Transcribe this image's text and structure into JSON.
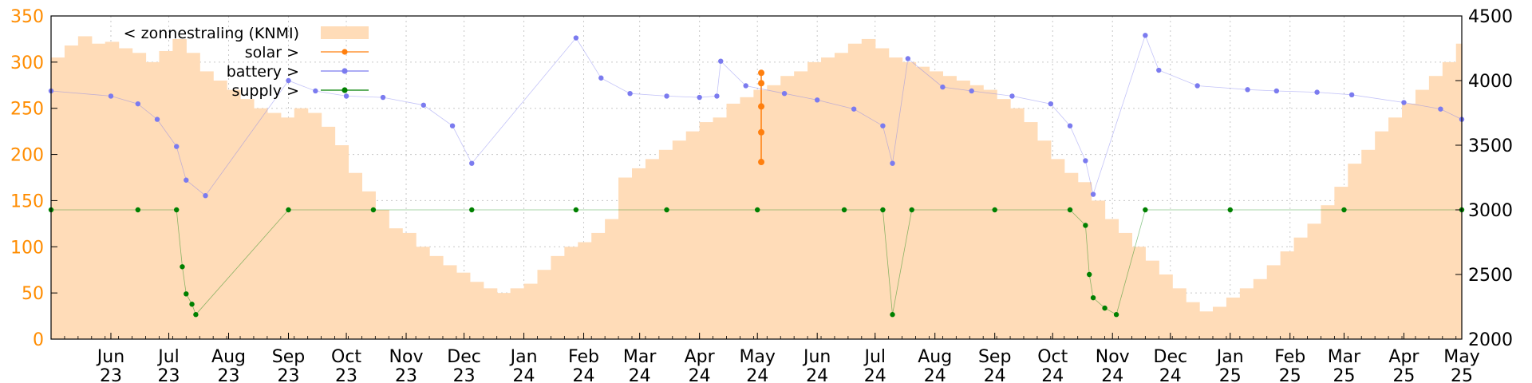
{
  "chart_data": {
    "type": "line",
    "title": "",
    "grid": true,
    "legend": {
      "placement": "top-left",
      "entries": [
        "< zonnestraling (KNMI)",
        "solar >",
        "battery >",
        "supply >"
      ]
    },
    "x_axis": {
      "ticks": [
        {
          "month": "Jun",
          "year": "23"
        },
        {
          "month": "Jul",
          "year": "23"
        },
        {
          "month": "Aug",
          "year": "23"
        },
        {
          "month": "Sep",
          "year": "23"
        },
        {
          "month": "Oct",
          "year": "23"
        },
        {
          "month": "Nov",
          "year": "23"
        },
        {
          "month": "Dec",
          "year": "23"
        },
        {
          "month": "Jan",
          "year": "24"
        },
        {
          "month": "Feb",
          "year": "24"
        },
        {
          "month": "Mar",
          "year": "24"
        },
        {
          "month": "Apr",
          "year": "24"
        },
        {
          "month": "May",
          "year": "24"
        },
        {
          "month": "Jun",
          "year": "24"
        },
        {
          "month": "Jul",
          "year": "24"
        },
        {
          "month": "Aug",
          "year": "24"
        },
        {
          "month": "Sep",
          "year": "24"
        },
        {
          "month": "Oct",
          "year": "24"
        },
        {
          "month": "Nov",
          "year": "24"
        },
        {
          "month": "Dec",
          "year": "24"
        },
        {
          "month": "Jan",
          "year": "25"
        },
        {
          "month": "Feb",
          "year": "25"
        },
        {
          "month": "Mar",
          "year": "25"
        },
        {
          "month": "Apr",
          "year": "25"
        },
        {
          "month": "May",
          "year": "25"
        }
      ],
      "range": [
        "2023-05-01",
        "2025-05-01"
      ]
    },
    "y_left": {
      "ticks": [
        0,
        50,
        100,
        150,
        200,
        250,
        300,
        350
      ],
      "range": [
        0,
        350
      ],
      "color": "#ff8c00"
    },
    "y_right": {
      "ticks": [
        2000,
        2500,
        3000,
        3500,
        4000,
        4500
      ],
      "range": [
        2000,
        4500
      ]
    },
    "series": [
      {
        "name": "< zonnestraling (KNMI)",
        "axis": "left",
        "style": "bars",
        "color": "#ffdcb8",
        "points": [
          [
            "2023-05-01",
            305
          ],
          [
            "2023-05-08",
            318
          ],
          [
            "2023-05-15",
            328
          ],
          [
            "2023-05-22",
            320
          ],
          [
            "2023-05-29",
            322
          ],
          [
            "2023-06-05",
            315
          ],
          [
            "2023-06-12",
            310
          ],
          [
            "2023-06-19",
            300
          ],
          [
            "2023-06-26",
            312
          ],
          [
            "2023-07-03",
            325
          ],
          [
            "2023-07-10",
            310
          ],
          [
            "2023-07-17",
            290
          ],
          [
            "2023-07-24",
            280
          ],
          [
            "2023-07-31",
            270
          ],
          [
            "2023-08-07",
            260
          ],
          [
            "2023-08-14",
            250
          ],
          [
            "2023-08-21",
            245
          ],
          [
            "2023-08-28",
            240
          ],
          [
            "2023-09-04",
            250
          ],
          [
            "2023-09-11",
            245
          ],
          [
            "2023-09-18",
            230
          ],
          [
            "2023-09-25",
            210
          ],
          [
            "2023-10-02",
            180
          ],
          [
            "2023-10-09",
            160
          ],
          [
            "2023-10-16",
            140
          ],
          [
            "2023-10-23",
            120
          ],
          [
            "2023-10-30",
            115
          ],
          [
            "2023-11-06",
            100
          ],
          [
            "2023-11-13",
            90
          ],
          [
            "2023-11-20",
            80
          ],
          [
            "2023-11-27",
            72
          ],
          [
            "2023-12-04",
            62
          ],
          [
            "2023-12-11",
            55
          ],
          [
            "2023-12-18",
            50
          ],
          [
            "2023-12-25",
            55
          ],
          [
            "2024-01-01",
            60
          ],
          [
            "2024-01-08",
            75
          ],
          [
            "2024-01-15",
            90
          ],
          [
            "2024-01-22",
            100
          ],
          [
            "2024-01-29",
            105
          ],
          [
            "2024-02-05",
            115
          ],
          [
            "2024-02-12",
            130
          ],
          [
            "2024-02-19",
            175
          ],
          [
            "2024-02-26",
            185
          ],
          [
            "2024-03-04",
            195
          ],
          [
            "2024-03-11",
            205
          ],
          [
            "2024-03-18",
            215
          ],
          [
            "2024-03-25",
            225
          ],
          [
            "2024-04-01",
            235
          ],
          [
            "2024-04-08",
            240
          ],
          [
            "2024-04-15",
            255
          ],
          [
            "2024-04-22",
            262
          ],
          [
            "2024-04-29",
            270
          ],
          [
            "2024-05-06",
            275
          ],
          [
            "2024-05-13",
            285
          ],
          [
            "2024-05-20",
            290
          ],
          [
            "2024-05-27",
            300
          ],
          [
            "2024-06-03",
            305
          ],
          [
            "2024-06-10",
            310
          ],
          [
            "2024-06-17",
            320
          ],
          [
            "2024-06-24",
            325
          ],
          [
            "2024-07-01",
            315
          ],
          [
            "2024-07-08",
            305
          ],
          [
            "2024-07-15",
            300
          ],
          [
            "2024-07-22",
            295
          ],
          [
            "2024-07-29",
            290
          ],
          [
            "2024-08-05",
            285
          ],
          [
            "2024-08-12",
            280
          ],
          [
            "2024-08-19",
            275
          ],
          [
            "2024-08-26",
            270
          ],
          [
            "2024-09-02",
            260
          ],
          [
            "2024-09-09",
            250
          ],
          [
            "2024-09-16",
            235
          ],
          [
            "2024-09-23",
            215
          ],
          [
            "2024-09-30",
            195
          ],
          [
            "2024-10-07",
            180
          ],
          [
            "2024-10-14",
            170
          ],
          [
            "2024-10-21",
            150
          ],
          [
            "2024-10-28",
            130
          ],
          [
            "2024-11-04",
            115
          ],
          [
            "2024-11-11",
            100
          ],
          [
            "2024-11-18",
            85
          ],
          [
            "2024-11-25",
            70
          ],
          [
            "2024-12-02",
            55
          ],
          [
            "2024-12-09",
            40
          ],
          [
            "2024-12-16",
            30
          ],
          [
            "2024-12-23",
            35
          ],
          [
            "2024-12-30",
            45
          ],
          [
            "2025-01-06",
            55
          ],
          [
            "2025-01-13",
            65
          ],
          [
            "2025-01-20",
            80
          ],
          [
            "2025-01-27",
            95
          ],
          [
            "2025-02-03",
            110
          ],
          [
            "2025-02-10",
            125
          ],
          [
            "2025-02-17",
            145
          ],
          [
            "2025-02-24",
            165
          ],
          [
            "2025-03-03",
            190
          ],
          [
            "2025-03-10",
            205
          ],
          [
            "2025-03-17",
            225
          ],
          [
            "2025-03-24",
            240
          ],
          [
            "2025-03-31",
            255
          ],
          [
            "2025-04-07",
            270
          ],
          [
            "2025-04-14",
            285
          ],
          [
            "2025-04-21",
            300
          ],
          [
            "2025-04-28",
            320
          ]
        ]
      },
      {
        "name": "solar >",
        "axis": "right",
        "style": "linespoints",
        "color": "#ff7f0e",
        "points": [
          [
            "2024-05-03",
            3370
          ],
          [
            "2024-05-03",
            3600
          ],
          [
            "2024-05-03",
            3800
          ],
          [
            "2024-05-03",
            3980
          ],
          [
            "2024-05-03",
            4060
          ]
        ]
      },
      {
        "name": "battery >",
        "axis": "right",
        "style": "points",
        "color": "#7b7bef",
        "points": [
          [
            "2023-05-01",
            3920
          ],
          [
            "2023-06-01",
            3880
          ],
          [
            "2023-06-15",
            3820
          ],
          [
            "2023-06-25",
            3700
          ],
          [
            "2023-07-05",
            3490
          ],
          [
            "2023-07-10",
            3230
          ],
          [
            "2023-07-20",
            3110
          ],
          [
            "2023-09-01",
            4000
          ],
          [
            "2023-09-15",
            3920
          ],
          [
            "2023-10-01",
            3880
          ],
          [
            "2023-10-20",
            3870
          ],
          [
            "2023-11-10",
            3810
          ],
          [
            "2023-11-25",
            3650
          ],
          [
            "2023-12-05",
            3360
          ],
          [
            "2024-01-28",
            4330
          ],
          [
            "2024-02-10",
            4020
          ],
          [
            "2024-02-25",
            3900
          ],
          [
            "2024-03-15",
            3880
          ],
          [
            "2024-04-01",
            3870
          ],
          [
            "2024-04-10",
            3880
          ],
          [
            "2024-04-12",
            4150
          ],
          [
            "2024-04-25",
            3960
          ],
          [
            "2024-05-15",
            3900
          ],
          [
            "2024-06-01",
            3850
          ],
          [
            "2024-06-20",
            3780
          ],
          [
            "2024-07-05",
            3650
          ],
          [
            "2024-07-10",
            3360
          ],
          [
            "2024-07-18",
            4170
          ],
          [
            "2024-08-05",
            3950
          ],
          [
            "2024-08-20",
            3920
          ],
          [
            "2024-09-10",
            3880
          ],
          [
            "2024-09-30",
            3820
          ],
          [
            "2024-10-10",
            3650
          ],
          [
            "2024-10-18",
            3380
          ],
          [
            "2024-10-22",
            3120
          ],
          [
            "2024-11-18",
            4350
          ],
          [
            "2024-11-25",
            4080
          ],
          [
            "2024-12-15",
            3960
          ],
          [
            "2025-01-10",
            3930
          ],
          [
            "2025-01-25",
            3920
          ],
          [
            "2025-02-15",
            3910
          ],
          [
            "2025-03-05",
            3890
          ],
          [
            "2025-04-01",
            3830
          ],
          [
            "2025-04-20",
            3780
          ],
          [
            "2025-05-01",
            3700
          ]
        ]
      },
      {
        "name": "supply >",
        "axis": "right",
        "style": "points",
        "color": "#008000",
        "points": [
          [
            "2023-05-01",
            3000
          ],
          [
            "2023-06-15",
            3000
          ],
          [
            "2023-07-05",
            3000
          ],
          [
            "2023-07-08",
            2560
          ],
          [
            "2023-07-10",
            2350
          ],
          [
            "2023-07-13",
            2270
          ],
          [
            "2023-07-15",
            2190
          ],
          [
            "2023-09-01",
            3000
          ],
          [
            "2023-10-15",
            3000
          ],
          [
            "2023-12-05",
            3000
          ],
          [
            "2024-01-28",
            3000
          ],
          [
            "2024-03-15",
            3000
          ],
          [
            "2024-05-01",
            3000
          ],
          [
            "2024-06-15",
            3000
          ],
          [
            "2024-07-05",
            3000
          ],
          [
            "2024-07-10",
            2190
          ],
          [
            "2024-07-20",
            3000
          ],
          [
            "2024-09-01",
            3000
          ],
          [
            "2024-10-10",
            3000
          ],
          [
            "2024-10-18",
            2880
          ],
          [
            "2024-10-20",
            2500
          ],
          [
            "2024-10-22",
            2320
          ],
          [
            "2024-10-28",
            2240
          ],
          [
            "2024-11-03",
            2190
          ],
          [
            "2024-11-18",
            3000
          ],
          [
            "2025-01-01",
            3000
          ],
          [
            "2025-03-01",
            3000
          ],
          [
            "2025-05-01",
            3000
          ]
        ]
      }
    ]
  }
}
